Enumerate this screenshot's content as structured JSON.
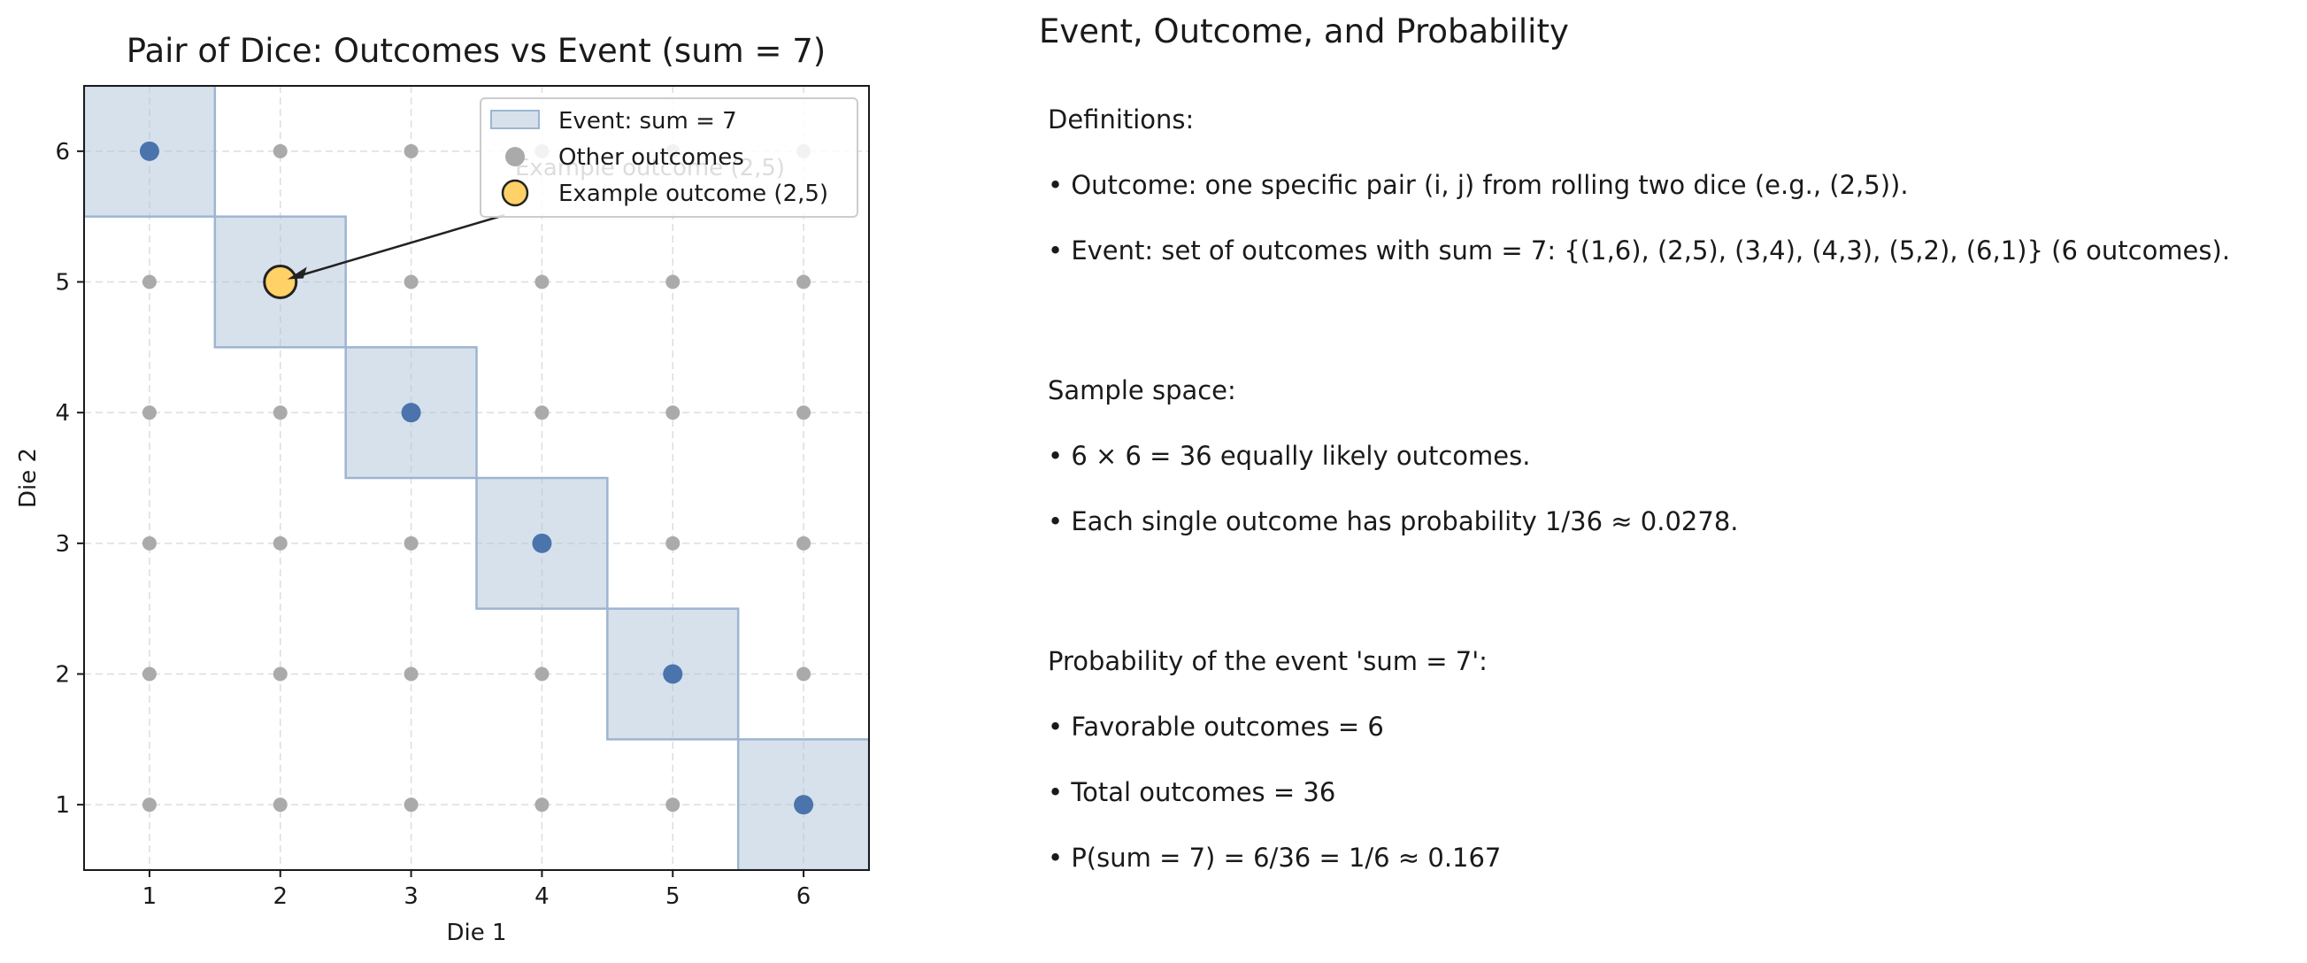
{
  "chart_data": {
    "type": "scatter",
    "title": "Pair of Dice: Outcomes vs Event (sum = 7)",
    "xlabel": "Die 1",
    "ylabel": "Die 2",
    "xlim": [
      0.5,
      6.5
    ],
    "ylim": [
      0.5,
      6.5
    ],
    "xticks": [
      1,
      2,
      3,
      4,
      5,
      6
    ],
    "yticks": [
      1,
      2,
      3,
      4,
      5,
      6
    ],
    "grid": true,
    "legend_position": "top-right",
    "legend": [
      {
        "label": "Event: sum = 7",
        "kind": "patch"
      },
      {
        "label": "Other outcomes",
        "kind": "dot"
      },
      {
        "label": "Example outcome (2,5)",
        "kind": "highlight"
      }
    ],
    "event_cells": [
      [
        1,
        6
      ],
      [
        2,
        5
      ],
      [
        3,
        4
      ],
      [
        4,
        3
      ],
      [
        5,
        2
      ],
      [
        6,
        1
      ]
    ],
    "event_points": [
      [
        1,
        6
      ],
      [
        3,
        4
      ],
      [
        4,
        3
      ],
      [
        5,
        2
      ],
      [
        6,
        1
      ]
    ],
    "other_outcomes": [
      [
        1,
        1
      ],
      [
        1,
        2
      ],
      [
        1,
        3
      ],
      [
        1,
        4
      ],
      [
        1,
        5
      ],
      [
        2,
        1
      ],
      [
        2,
        2
      ],
      [
        2,
        3
      ],
      [
        2,
        4
      ],
      [
        2,
        6
      ],
      [
        3,
        1
      ],
      [
        3,
        2
      ],
      [
        3,
        3
      ],
      [
        3,
        5
      ],
      [
        3,
        6
      ],
      [
        4,
        1
      ],
      [
        4,
        2
      ],
      [
        4,
        4
      ],
      [
        4,
        5
      ],
      [
        4,
        6
      ],
      [
        5,
        1
      ],
      [
        5,
        3
      ],
      [
        5,
        4
      ],
      [
        5,
        5
      ],
      [
        5,
        6
      ],
      [
        6,
        2
      ],
      [
        6,
        3
      ],
      [
        6,
        4
      ],
      [
        6,
        5
      ],
      [
        6,
        6
      ]
    ],
    "example_outcome": [
      2,
      5
    ],
    "annotation": {
      "text": "Example outcome (2,5)",
      "target": [
        2,
        5
      ]
    },
    "colors": {
      "event_fill": "#b0c4da",
      "event_edge": "#9db5d1",
      "event_point": "#4a74ab",
      "other_point": "#aaaaaa",
      "example_fill": "#ffd166",
      "example_edge": "#222222",
      "grid": "#dddddd"
    }
  },
  "panel": {
    "title": "Event, Outcome, and Probability",
    "definitions": {
      "heading": "Definitions:",
      "bullets": [
        "• Outcome: one specific pair (i, j) from rolling two dice (e.g., (2,5)).",
        "• Event: set of outcomes with sum = 7: {(1,6), (2,5), (3,4), (4,3), (5,2), (6,1)} (6 outcomes)."
      ]
    },
    "sample_space": {
      "heading": "Sample space:",
      "bullets": [
        "• 6 × 6 = 36 equally likely outcomes.",
        "• Each single outcome has probability 1/36 ≈ 0.0278."
      ]
    },
    "probability": {
      "heading": "Probability of the event 'sum = 7':",
      "bullets": [
        "• Favorable outcomes = 6",
        "• Total outcomes = 36",
        "• P(sum = 7) = 6/36 = 1/6 ≈ 0.167"
      ]
    }
  }
}
